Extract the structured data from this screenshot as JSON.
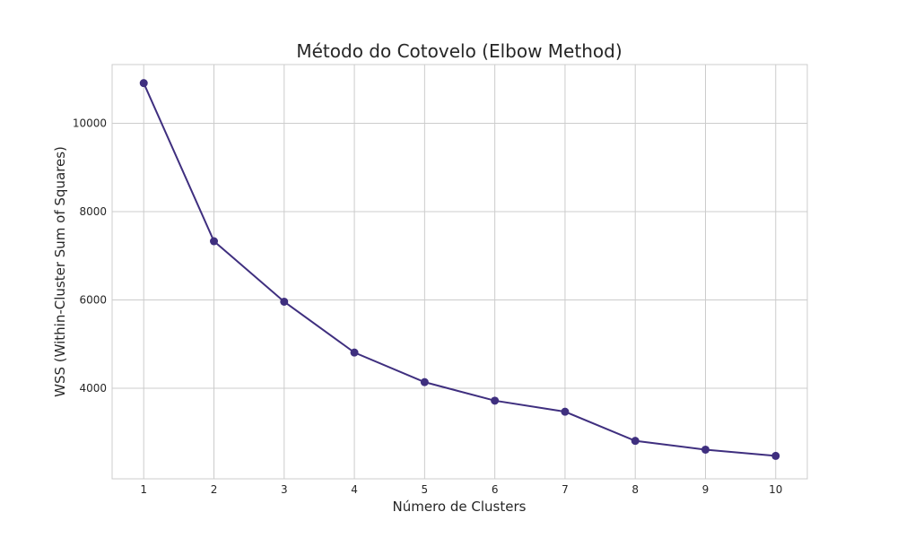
{
  "chart_data": {
    "type": "line",
    "title": "Método do Cotovelo (Elbow Method)",
    "xlabel": "Número de Clusters",
    "ylabel": "WSS (Within-Cluster Sum of Squares)",
    "x": [
      1,
      2,
      3,
      4,
      5,
      6,
      7,
      8,
      9,
      10
    ],
    "series": [
      {
        "values": [
          10910,
          7330,
          5960,
          4810,
          4140,
          3720,
          3470,
          2810,
          2610,
          2470
        ],
        "color": "#3f2f7f"
      }
    ],
    "xticks": [
      1,
      2,
      3,
      4,
      5,
      6,
      7,
      8,
      9,
      10
    ],
    "yticks": [
      4000,
      6000,
      8000,
      10000
    ],
    "xlim": [
      0.55,
      10.45
    ],
    "ylim": [
      1950,
      11330
    ],
    "grid": true,
    "marker": "circle"
  }
}
